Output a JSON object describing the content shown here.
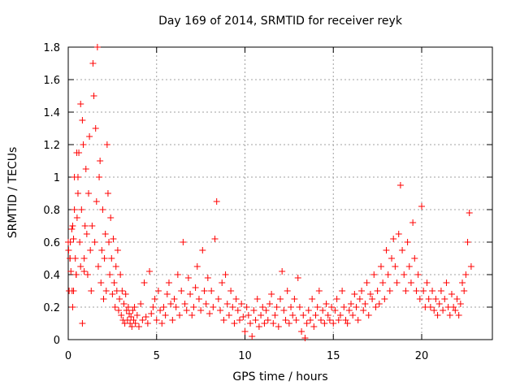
{
  "chart_data": {
    "type": "scatter",
    "title": "Day 169 of 2014, SRMTID for receiver reyk",
    "xlabel": "GPS time / hours",
    "ylabel": "SRMTID / TECUs",
    "xlim": [
      0,
      24
    ],
    "ylim": [
      0,
      1.8
    ],
    "xticks": [
      "0",
      "5",
      "10",
      "15",
      "20"
    ],
    "yticks": [
      "0",
      "0.2",
      "0.4",
      "0.6",
      "0.8",
      "1",
      "1.2",
      "1.4",
      "1.6",
      "1.8"
    ],
    "grid": true,
    "marker": "+",
    "color": "#ff0000",
    "series": [
      {
        "name": "SRMTID",
        "x": [
          0.0,
          0.05,
          0.1,
          0.15,
          0.2,
          0.25,
          0.3,
          0.35,
          0.4,
          0.45,
          0.5,
          0.55,
          0.6,
          0.65,
          0.7,
          0.75,
          0.8,
          0.85,
          0.9,
          0.95,
          1.0,
          1.05,
          1.1,
          1.15,
          1.2,
          1.25,
          1.3,
          1.35,
          1.4,
          1.45,
          1.5,
          1.55,
          1.6,
          1.65,
          1.7,
          1.75,
          1.8,
          1.85,
          1.9,
          1.95,
          2.0,
          2.05,
          2.1,
          2.15,
          2.2,
          2.25,
          2.3,
          2.35,
          2.4,
          2.45,
          2.5,
          2.55,
          2.6,
          2.65,
          2.7,
          2.75,
          2.8,
          2.85,
          2.9,
          2.95,
          3.0,
          3.05,
          3.1,
          3.15,
          3.2,
          3.25,
          3.3,
          3.35,
          3.4,
          3.45,
          3.5,
          3.55,
          3.6,
          3.65,
          3.7,
          3.75,
          3.8,
          3.9,
          4.0,
          4.1,
          4.2,
          4.3,
          4.4,
          4.5,
          4.6,
          4.7,
          4.8,
          4.9,
          5.0,
          5.1,
          5.2,
          5.3,
          5.4,
          5.5,
          5.6,
          5.7,
          5.8,
          5.9,
          6.0,
          6.1,
          6.2,
          6.3,
          6.4,
          6.5,
          6.6,
          6.7,
          6.8,
          6.9,
          7.0,
          7.1,
          7.2,
          7.3,
          7.4,
          7.5,
          7.6,
          7.7,
          7.8,
          7.9,
          8.0,
          8.1,
          8.2,
          8.3,
          8.4,
          8.5,
          8.6,
          8.7,
          8.8,
          8.9,
          9.0,
          9.1,
          9.2,
          9.3,
          9.4,
          9.5,
          9.6,
          9.7,
          9.8,
          9.9,
          10.0,
          10.1,
          10.2,
          10.3,
          10.4,
          10.5,
          10.6,
          10.7,
          10.8,
          10.9,
          11.0,
          11.1,
          11.2,
          11.3,
          11.4,
          11.5,
          11.6,
          11.7,
          11.8,
          11.9,
          12.0,
          12.1,
          12.2,
          12.3,
          12.4,
          12.5,
          12.6,
          12.7,
          12.8,
          12.9,
          13.0,
          13.1,
          13.2,
          13.3,
          13.4,
          13.5,
          13.6,
          13.7,
          13.8,
          13.9,
          14.0,
          14.1,
          14.2,
          14.3,
          14.4,
          14.5,
          14.6,
          14.7,
          14.8,
          14.9,
          15.0,
          15.1,
          15.2,
          15.3,
          15.4,
          15.5,
          15.6,
          15.7,
          15.8,
          15.9,
          16.0,
          16.1,
          16.2,
          16.3,
          16.4,
          16.5,
          16.6,
          16.7,
          16.8,
          16.9,
          17.0,
          17.1,
          17.2,
          17.3,
          17.4,
          17.5,
          17.6,
          17.7,
          17.8,
          17.9,
          18.0,
          18.1,
          18.2,
          18.3,
          18.4,
          18.5,
          18.6,
          18.7,
          18.8,
          18.9,
          19.0,
          19.1,
          19.2,
          19.3,
          19.4,
          19.5,
          19.6,
          19.7,
          19.8,
          19.9,
          20.0,
          20.1,
          20.2,
          20.3,
          20.4,
          20.5,
          20.6,
          20.7,
          20.8,
          20.9,
          21.0,
          21.1,
          21.2,
          21.3,
          21.4,
          21.5,
          21.6,
          21.7,
          21.8,
          21.9,
          22.0,
          22.1,
          22.2,
          22.3,
          22.4,
          22.5,
          22.6,
          22.7,
          22.8,
          0.02,
          0.1,
          0.3,
          0.25,
          0.9,
          0.55,
          0.35,
          0.12,
          0.7,
          0.48,
          0.45,
          0.22,
          0.8,
          0.6,
          0.3,
          0.5,
          0.42,
          0.68,
          0.2,
          0.62,
          1.0,
          0.5,
          0.4,
          0.75,
          0.9,
          1.15,
          0.6,
          0.45,
          0.8,
          1.35,
          1.2,
          0.5,
          0.7,
          1.05,
          0.65,
          0.4,
          0.9,
          1.25,
          0.55,
          0.3,
          0.7,
          1.7,
          1.5,
          0.6,
          1.3,
          0.85,
          1.8,
          0.45,
          1.0,
          1.1,
          0.35,
          0.55,
          0.8,
          0.25,
          0.5,
          0.65,
          0.3,
          1.2,
          0.9,
          0.6,
          0.4,
          0.75,
          0.5,
          0.28,
          0.62,
          0.35,
          0.2,
          0.45,
          0.3,
          0.55,
          0.18,
          0.25,
          0.4,
          0.15,
          0.3,
          0.12,
          0.22,
          0.1,
          0.28,
          0.18,
          0.12,
          0.2,
          0.16,
          0.1,
          0.14,
          0.08,
          0.18,
          0.12,
          0.2,
          0.1,
          0.15,
          0.08,
          0.22,
          0.12,
          0.35,
          0.14,
          0.1,
          0.42,
          0.16,
          0.2,
          0.25,
          0.12,
          0.3,
          0.18,
          0.1,
          0.2,
          0.15,
          0.28,
          0.35,
          0.22,
          0.12,
          0.25,
          0.2,
          0.4,
          0.15,
          0.3,
          0.6,
          0.22,
          0.18,
          0.38,
          0.28,
          0.15,
          0.2,
          0.32,
          0.45,
          0.25,
          0.18,
          0.55,
          0.3,
          0.22,
          0.38,
          0.16,
          0.3,
          0.2,
          0.62,
          0.85,
          0.25,
          0.18,
          0.35,
          0.12,
          0.4,
          0.22,
          0.15,
          0.3,
          0.2,
          0.1,
          0.25,
          0.18,
          0.12,
          0.22,
          0.14,
          0.05,
          0.2,
          0.15,
          0.1,
          0.02,
          0.18,
          0.12,
          0.25,
          0.08,
          0.15,
          0.2,
          0.1,
          0.18,
          0.12,
          0.22,
          0.28,
          0.1,
          0.15,
          0.2,
          0.08,
          0.25,
          0.42,
          0.18,
          0.12,
          0.3,
          0.1,
          0.2,
          0.15,
          0.25,
          0.12,
          0.38,
          0.2,
          0.05,
          0.15,
          0.01,
          0.1,
          0.18,
          0.12,
          0.25,
          0.08,
          0.15,
          0.2,
          0.3,
          0.12,
          0.18,
          0.1,
          0.22,
          0.15,
          0.12,
          0.2,
          0.1,
          0.18,
          0.25,
          0.12,
          0.15,
          0.3,
          0.2,
          0.12,
          0.1,
          0.18,
          0.22,
          0.15,
          0.28,
          0.2,
          0.12,
          0.25,
          0.3,
          0.18,
          0.22,
          0.35,
          0.15,
          0.28,
          0.25,
          0.4,
          0.2,
          0.3,
          0.22,
          0.45,
          0.35,
          0.25,
          0.55,
          0.4,
          0.3,
          0.5,
          0.62,
          0.45,
          0.35,
          0.65,
          0.95,
          0.55,
          0.4,
          0.3,
          0.6,
          0.45,
          0.35,
          0.72,
          0.5,
          0.3,
          0.4,
          0.25,
          0.82,
          0.3,
          0.2,
          0.35,
          0.25,
          0.2,
          0.3,
          0.18,
          0.25,
          0.15,
          0.22,
          0.3,
          0.18,
          0.25,
          0.35,
          0.2,
          0.15,
          0.28,
          0.2,
          0.18,
          0.25,
          0.15,
          0.22,
          0.35,
          0.3,
          0.4,
          0.6,
          0.78,
          0.45,
          0.55,
          0.5,
          0.3,
          0.7,
          0.42,
          1.0,
          0.8,
          0.6,
          1.45,
          1.15,
          0.4,
          0.3,
          0.1,
          0.05
        ]
      }
    ]
  }
}
